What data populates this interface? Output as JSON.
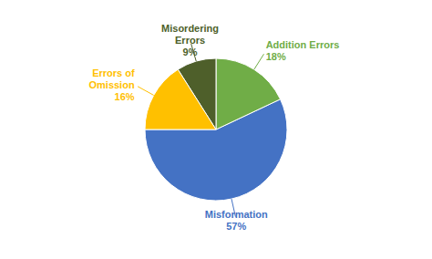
{
  "chart_data": {
    "type": "pie",
    "categories": [
      "Misformation",
      "Addition Errors",
      "Misordering\nErrors",
      "Errors of\nOmission"
    ],
    "values": [
      57,
      18,
      9,
      16
    ],
    "value_labels": [
      "57%",
      "18%",
      "9%",
      "16%"
    ],
    "colors": [
      "#4472C4",
      "#70AD47",
      "#4E5F2A",
      "#FFC000"
    ],
    "data_labels": true
  }
}
